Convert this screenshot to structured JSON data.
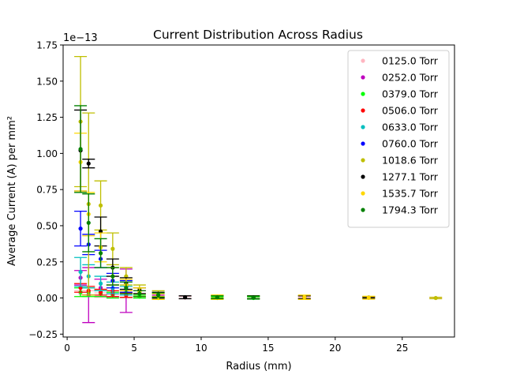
{
  "chart_data": {
    "type": "scatter",
    "title": "Current Distribution Across Radius",
    "xlabel": "Radius (mm)",
    "ylabel": "Average Current (A) per mm²",
    "y_offset_label": "1e−13",
    "y_scale_exponent": -13,
    "xlim": [
      -0.3,
      28.9
    ],
    "ylim": [
      -0.27,
      1.75
    ],
    "x_ticks": [
      0,
      5,
      10,
      15,
      20,
      25
    ],
    "x_tick_labels": [
      "0",
      "5",
      "10",
      "15",
      "20",
      "25"
    ],
    "y_ticks": [
      -0.25,
      0.0,
      0.25,
      0.5,
      0.75,
      1.0,
      1.25,
      1.5,
      1.75
    ],
    "y_tick_labels": [
      "−0.25",
      "0.00",
      "0.25",
      "0.50",
      "0.75",
      "1.00",
      "1.25",
      "1.50",
      "1.75"
    ],
    "grid": false,
    "legend_position": "top-right",
    "error_bars": true,
    "series": [
      {
        "name": "0125.0 Torr",
        "color": "#ffb6c1",
        "points": [
          [
            1.0,
            0.03,
            0.02
          ],
          [
            1.6,
            0.03,
            0.02
          ],
          [
            2.5,
            0.02,
            0.015
          ],
          [
            3.4,
            0.015,
            0.01
          ],
          [
            4.4,
            0.01,
            0.01
          ],
          [
            5.4,
            0.008,
            0.008
          ],
          [
            6.8,
            0.005,
            0.008
          ],
          [
            8.8,
            0.003,
            0.008
          ],
          [
            11.2,
            0.002,
            0.006
          ],
          [
            13.9,
            0.002,
            0.006
          ],
          [
            17.7,
            0.001,
            0.005
          ],
          [
            22.5,
            0.001,
            0.005
          ],
          [
            27.5,
            0.0,
            0.004
          ]
        ]
      },
      {
        "name": "0252.0 Torr",
        "color": "#bf00bf",
        "points": [
          [
            1.0,
            0.14,
            0.05
          ],
          [
            1.6,
            0.02,
            0.19
          ],
          [
            2.5,
            0.07,
            0.06
          ],
          [
            3.4,
            0.05,
            0.04
          ],
          [
            4.4,
            0.05,
            0.15
          ],
          [
            5.4,
            0.03,
            0.02
          ],
          [
            6.8,
            0.01,
            0.01
          ]
        ]
      },
      {
        "name": "0379.0 Torr",
        "color": "#00ff00",
        "points": [
          [
            1.0,
            0.04,
            0.03
          ],
          [
            1.6,
            0.04,
            0.03
          ],
          [
            2.5,
            0.03,
            0.02
          ],
          [
            3.4,
            0.02,
            0.02
          ],
          [
            4.4,
            0.02,
            0.015
          ],
          [
            5.4,
            0.01,
            0.01
          ],
          [
            6.8,
            0.0,
            0.01
          ],
          [
            11.2,
            0.0,
            0.008
          ],
          [
            13.9,
            0.0,
            0.008
          ]
        ]
      },
      {
        "name": "0506.0 Torr",
        "color": "#ff0000",
        "points": [
          [
            1.0,
            0.07,
            0.03
          ],
          [
            1.6,
            0.05,
            0.03
          ],
          [
            2.5,
            0.04,
            0.02
          ],
          [
            3.4,
            0.03,
            0.02
          ],
          [
            4.4,
            0.02,
            0.015
          ]
        ]
      },
      {
        "name": "0633.0 Torr",
        "color": "#00bfbf",
        "points": [
          [
            1.0,
            0.18,
            0.1
          ],
          [
            1.6,
            0.15,
            0.08
          ],
          [
            2.5,
            0.1,
            0.05
          ],
          [
            3.4,
            0.07,
            0.04
          ],
          [
            4.4,
            0.05,
            0.03
          ]
        ]
      },
      {
        "name": "0760.0 Torr",
        "color": "#0000ff",
        "points": [
          [
            1.0,
            0.48,
            0.12
          ],
          [
            1.6,
            0.37,
            0.07
          ],
          [
            2.5,
            0.27,
            0.06
          ],
          [
            3.4,
            0.12,
            0.05
          ],
          [
            4.4,
            0.08,
            0.04
          ]
        ]
      },
      {
        "name": "1018.6 Torr",
        "color": "#bfbf00",
        "points": [
          [
            1.0,
            1.22,
            0.45
          ],
          [
            1.6,
            0.65,
            0.63
          ],
          [
            2.5,
            0.64,
            0.17
          ],
          [
            3.4,
            0.34,
            0.11
          ],
          [
            4.4,
            0.15,
            0.06
          ],
          [
            5.4,
            0.06,
            0.03
          ],
          [
            6.8,
            0.03,
            0.02
          ],
          [
            11.2,
            0.01,
            0.01
          ],
          [
            13.9,
            0.005,
            0.01
          ],
          [
            17.7,
            0.005,
            0.01
          ],
          [
            22.5,
            0.003,
            0.005
          ],
          [
            27.5,
            0.0,
            0.005
          ]
        ]
      },
      {
        "name": "1277.1 Torr",
        "color": "#000000",
        "points": [
          [
            1.0,
            1.02,
            0.28
          ],
          [
            1.6,
            0.93,
            0.03
          ],
          [
            2.5,
            0.46,
            0.1
          ],
          [
            3.4,
            0.21,
            0.06
          ],
          [
            4.4,
            0.1,
            0.04
          ],
          [
            5.4,
            0.05,
            0.02
          ],
          [
            6.8,
            0.02,
            0.02
          ],
          [
            8.8,
            0.005,
            0.01
          ],
          [
            11.2,
            0.005,
            0.01
          ],
          [
            13.9,
            0.005,
            0.01
          ],
          [
            17.7,
            0.005,
            0.01
          ],
          [
            22.5,
            0.003,
            0.005
          ]
        ]
      },
      {
        "name": "1535.7 Torr",
        "color": "#ffd700",
        "points": [
          [
            1.0,
            0.94,
            0.2
          ],
          [
            1.6,
            0.58,
            0.15
          ],
          [
            2.5,
            0.35,
            0.1
          ],
          [
            3.4,
            0.15,
            0.06
          ],
          [
            4.4,
            0.09,
            0.04
          ],
          [
            5.4,
            0.04,
            0.03
          ],
          [
            6.8,
            0.01,
            0.02
          ],
          [
            11.2,
            0.005,
            0.015
          ],
          [
            17.7,
            0.005,
            0.015
          ],
          [
            22.5,
            0.002,
            0.01
          ]
        ]
      },
      {
        "name": "1794.3 Torr",
        "color": "#008000",
        "points": [
          [
            1.0,
            1.03,
            0.3
          ],
          [
            1.6,
            0.52,
            0.2
          ],
          [
            2.5,
            0.31,
            0.1
          ],
          [
            3.4,
            0.15,
            0.06
          ],
          [
            4.4,
            0.07,
            0.04
          ],
          [
            5.4,
            0.03,
            0.02
          ],
          [
            6.8,
            0.02,
            0.015
          ],
          [
            11.2,
            0.005,
            0.01
          ],
          [
            13.9,
            0.003,
            0.01
          ]
        ]
      }
    ]
  }
}
